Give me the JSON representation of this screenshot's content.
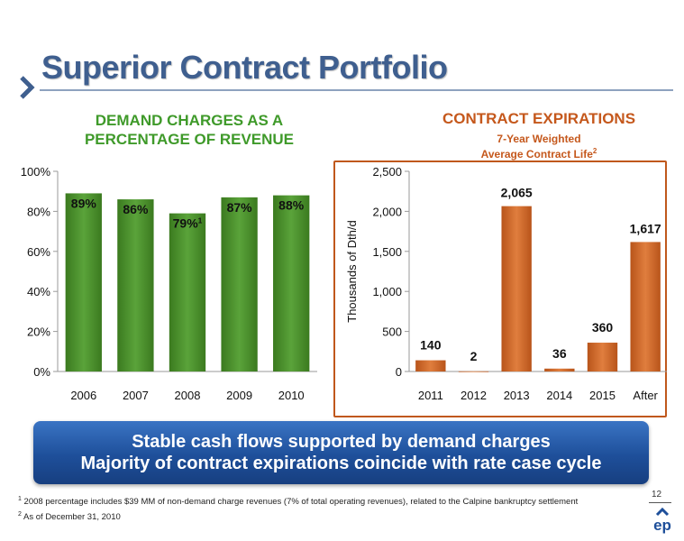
{
  "slide": {
    "title": "Superior Contract Portfolio",
    "banner_line1": "Stable cash flows supported by demand charges",
    "banner_line2": "Majority of contract expirations coincide with rate case cycle",
    "footnote1_mark": "1",
    "footnote1": "2008 percentage includes $39 MM of non-demand charge revenues (7% of total operating revenues), related to the Calpine bankruptcy settlement",
    "footnote2_mark": "2",
    "footnote2": "As of December 31, 2010",
    "page_number": "12",
    "logo_text": "ep",
    "colors": {
      "title": "#3f5f8f",
      "green_bar": "#4c8f2a",
      "orange_bar": "#cf6a2a",
      "banner": "#1e4f9a"
    }
  },
  "chart_data": [
    {
      "type": "bar",
      "title_line1": "DEMAND CHARGES AS A",
      "title_line2": "PERCENTAGE OF REVENUE",
      "categories": [
        "2006",
        "2007",
        "2008",
        "2009",
        "2010"
      ],
      "values": [
        89,
        86,
        79,
        87,
        88
      ],
      "data_labels": [
        "89%",
        "86%",
        "79%",
        "87%",
        "88%"
      ],
      "data_label_marks": [
        "",
        "",
        "1",
        "",
        ""
      ],
      "ylim": [
        0,
        100
      ],
      "yticks": [
        0,
        20,
        40,
        60,
        80,
        100
      ],
      "ytick_labels": [
        "0%",
        "20%",
        "40%",
        "60%",
        "80%",
        "100%"
      ],
      "grid": false,
      "color": "#4c8f2a"
    },
    {
      "type": "bar",
      "title": "CONTRACT EXPIRATIONS",
      "subtitle_line1": "7-Year Weighted",
      "subtitle_line2": "Average Contract Life",
      "subtitle_mark": "2",
      "ylabel": "Thousands of Dth/d",
      "categories": [
        "2011",
        "2012",
        "2013",
        "2014",
        "2015",
        "After"
      ],
      "values": [
        140,
        2,
        2065,
        36,
        360,
        1617
      ],
      "data_labels": [
        "140",
        "2",
        "2,065",
        "36",
        "360",
        "1,617"
      ],
      "ylim": [
        0,
        2500
      ],
      "yticks": [
        0,
        500,
        1000,
        1500,
        2000,
        2500
      ],
      "ytick_labels": [
        "0",
        "500",
        "1,000",
        "1,500",
        "2,000",
        "2,500"
      ],
      "grid": false,
      "color": "#cf6a2a"
    }
  ]
}
